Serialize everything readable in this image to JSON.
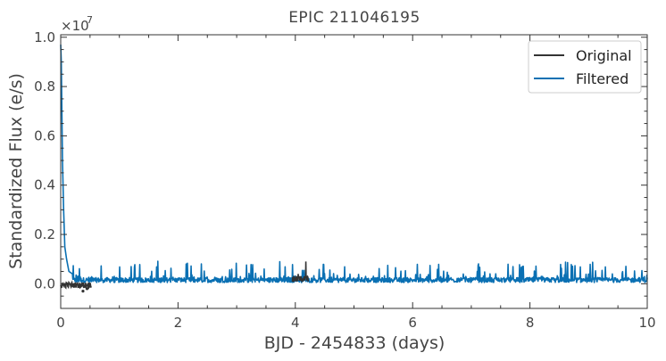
{
  "chart_data": {
    "type": "line",
    "title": "EPIC 211046195",
    "xlabel": "BJD - 2454833 (days)",
    "ylabel": "Standardized Flux (e/s)",
    "y_multiplier_label": "×10",
    "y_multiplier_exponent": "7",
    "xlim": [
      0,
      10
    ],
    "ylim": [
      -0.1,
      1.01
    ],
    "x_ticks": [
      0,
      2,
      4,
      6,
      8,
      10
    ],
    "x_tick_labels": [
      "0",
      "2",
      "4",
      "6",
      "8",
      "10"
    ],
    "y_ticks": [
      0.0,
      0.2,
      0.4,
      0.6,
      0.8,
      1.0
    ],
    "y_tick_labels": [
      "0.0",
      "0.2",
      "0.4",
      "0.6",
      "0.8",
      "1.0"
    ],
    "grid": false,
    "legend_position": "top-right",
    "series": [
      {
        "name": "Original",
        "color": "#333333",
        "segments": [
          {
            "x_start": 0.0,
            "x_end": 0.52,
            "baseline": -0.005,
            "noise": 0.012,
            "dips": [
              {
                "x": 0.38,
                "y": -0.03
              },
              {
                "x": 0.45,
                "y": -0.02
              }
            ]
          },
          {
            "x_start": 3.95,
            "x_end": 4.22,
            "baseline": 0.02,
            "noise": 0.012,
            "spikes": [
              {
                "x": 4.18,
                "y": 0.09
              },
              {
                "x": 4.05,
                "y": 0.04
              }
            ]
          }
        ]
      },
      {
        "name": "Filtered",
        "color": "#0a70b3",
        "x_start": 0.0,
        "x_end": 10.0,
        "baseline": 0.015,
        "noise": 0.01,
        "spike_height": 0.05,
        "initial_peak": [
          {
            "x": 0.0,
            "y": 0.97
          },
          {
            "x": 0.01,
            "y": 0.9
          },
          {
            "x": 0.02,
            "y": 0.7
          },
          {
            "x": 0.03,
            "y": 0.5
          },
          {
            "x": 0.05,
            "y": 0.3
          },
          {
            "x": 0.07,
            "y": 0.15
          },
          {
            "x": 0.1,
            "y": 0.1
          },
          {
            "x": 0.14,
            "y": 0.05
          },
          {
            "x": 0.2,
            "y": 0.04
          }
        ]
      }
    ]
  }
}
